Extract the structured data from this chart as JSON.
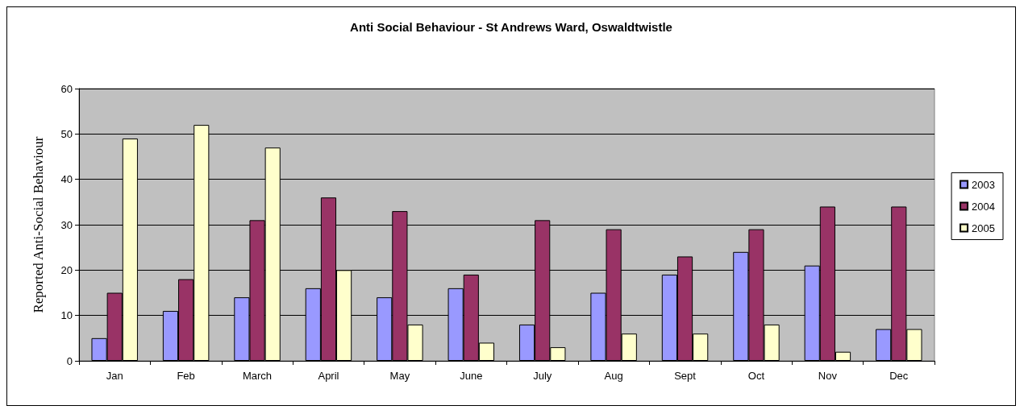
{
  "chart_data": {
    "type": "bar",
    "title": "Anti Social Behaviour - St Andrews Ward, Oswaldtwistle",
    "ylabel": "Reported Anti-Social Behaviour",
    "categories": [
      "Jan",
      "Feb",
      "March",
      "April",
      "May",
      "June",
      "July",
      "Aug",
      "Sept",
      "Oct",
      "Nov",
      "Dec"
    ],
    "series": [
      {
        "name": "2003",
        "color": "#9999ff",
        "values": [
          5,
          11,
          14,
          16,
          14,
          16,
          8,
          15,
          19,
          24,
          21,
          7
        ]
      },
      {
        "name": "2004",
        "color": "#993366",
        "values": [
          15,
          18,
          31,
          36,
          33,
          19,
          31,
          29,
          23,
          29,
          34,
          34
        ]
      },
      {
        "name": "2005",
        "color": "#ffffcc",
        "values": [
          49,
          52,
          47,
          20,
          8,
          4,
          3,
          6,
          6,
          8,
          2,
          7
        ]
      }
    ],
    "ylim": [
      0,
      60
    ],
    "yticks": [
      0,
      10,
      20,
      30,
      40,
      50,
      60
    ],
    "grid": "y",
    "legend": "right"
  }
}
